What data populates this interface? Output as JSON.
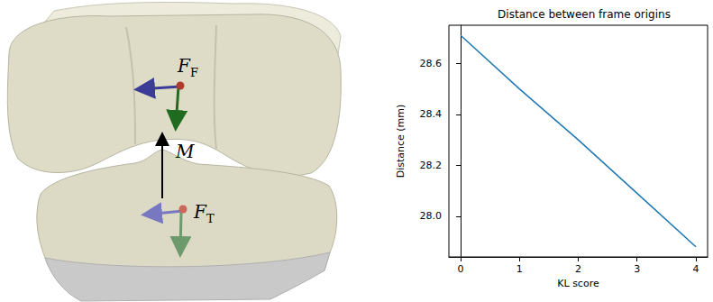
{
  "diagram": {
    "labels": [
      {
        "name": "F",
        "subscript": "F"
      },
      {
        "name": "M"
      },
      {
        "name": "F",
        "subscript": "T"
      }
    ]
  },
  "chart_data": {
    "type": "line",
    "title": "Distance between frame origins",
    "x_label": "KL score",
    "y_label": "Distance (mm)",
    "x": [
      0,
      1,
      2,
      3,
      4
    ],
    "series": [
      {
        "color": "#1f77b4",
        "marker": "none",
        "line_style": "solid",
        "values": [
          28.71,
          28.5,
          28.3,
          28.09,
          27.88
        ]
      }
    ],
    "xlim": [
      -0.2,
      4.2
    ],
    "xticks": [
      0,
      1,
      2,
      3,
      4
    ],
    "ylim": [
      27.84,
      28.75
    ],
    "yticks": [
      {
        "value": 28,
        "label": "28.0"
      },
      28.2,
      28.4,
      28.6
    ],
    "grid": false
  }
}
